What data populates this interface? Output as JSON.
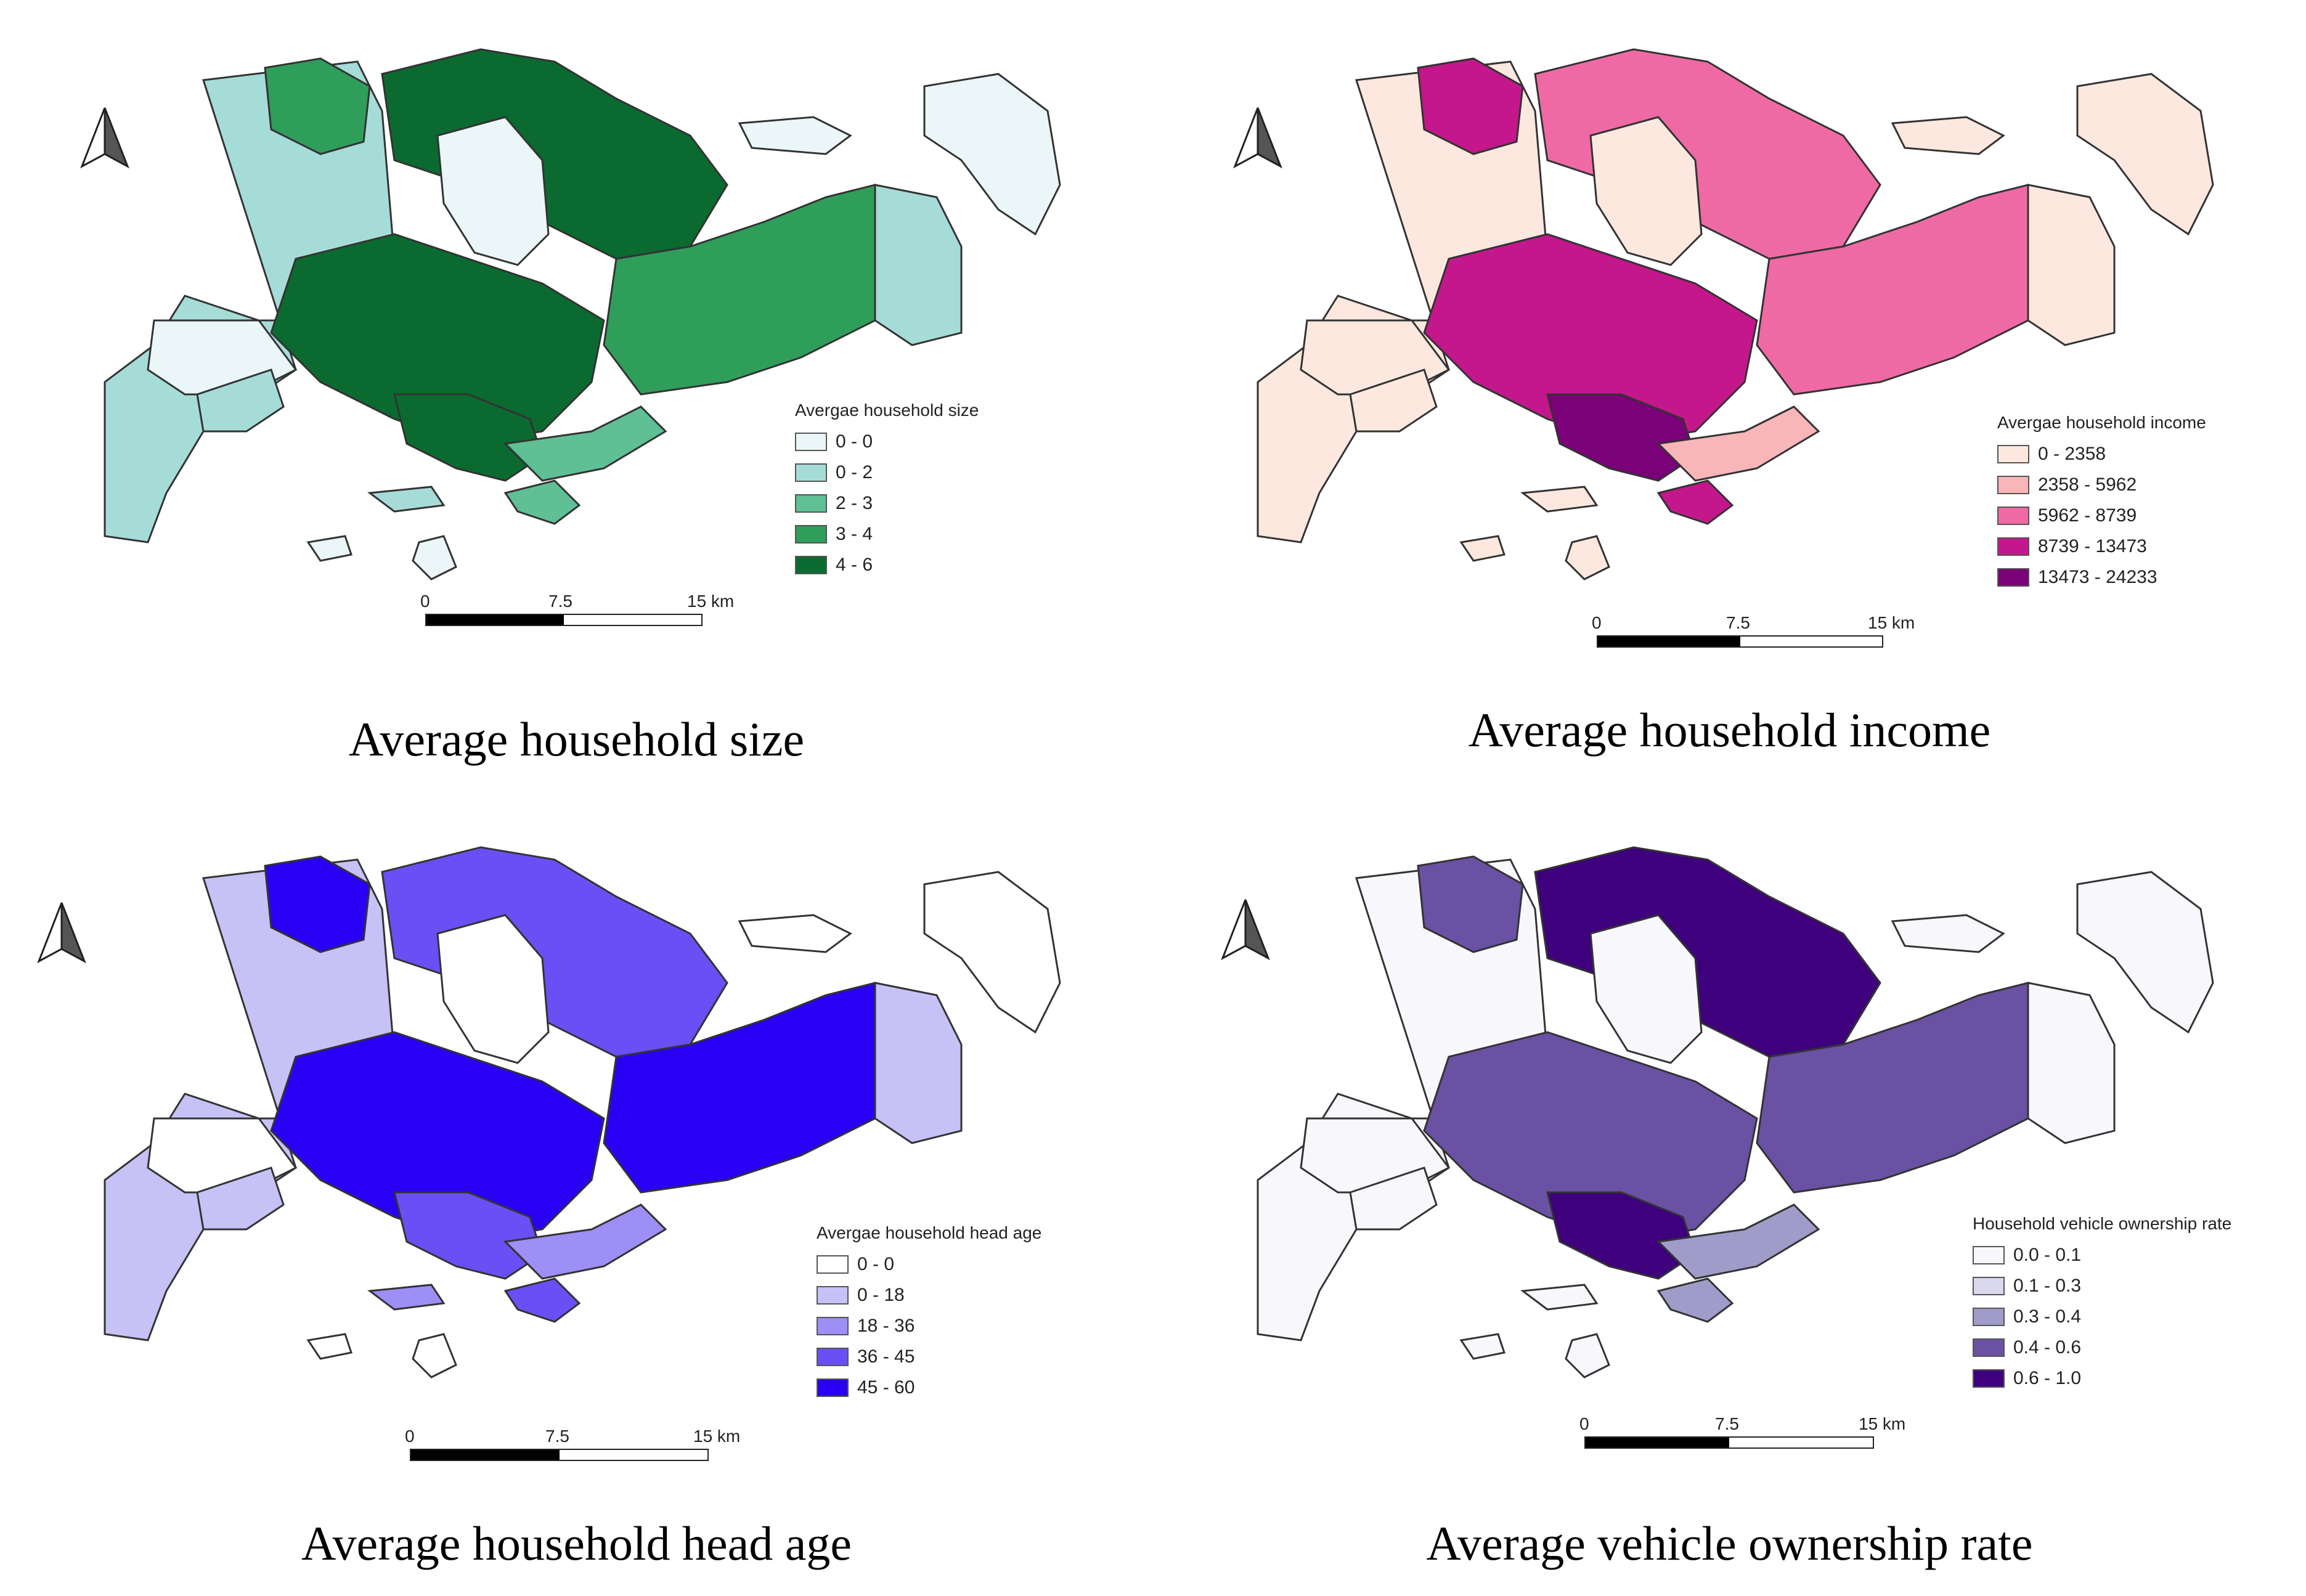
{
  "panels": [
    {
      "caption": "Average household size",
      "legend_title": "Avergae household size",
      "classes": [
        {
          "label": "0 - 0",
          "color": "#eaf6f8"
        },
        {
          "label": "0 - 2",
          "color": "#a6dcd8"
        },
        {
          "label": "2 - 3",
          "color": "#5fbf95"
        },
        {
          "label": "3 - 4",
          "color": "#2f9e5a"
        },
        {
          "label": "4 - 6",
          "color": "#0a6a30"
        }
      ],
      "scale": {
        "zero": "0",
        "mid": "7.5",
        "end": "15 km"
      }
    },
    {
      "caption": "Average household income",
      "legend_title": "Avergae household income",
      "classes": [
        {
          "label": "0 - 2358",
          "color": "#fde8df"
        },
        {
          "label": "2358 - 5962",
          "color": "#f8b6b9"
        },
        {
          "label": "5962 - 8739",
          "color": "#ef6aa4"
        },
        {
          "label": "8739 - 13473",
          "color": "#c4178c"
        },
        {
          "label": "13473 - 24233",
          "color": "#7a0177"
        }
      ],
      "scale": {
        "zero": "0",
        "mid": "7.5",
        "end": "15 km"
      }
    },
    {
      "caption": "Average household head age",
      "legend_title": "Avergae household head age",
      "classes": [
        {
          "label": "0 - 0",
          "color": "#ffffff"
        },
        {
          "label": "0 - 18",
          "color": "#c6c2f6"
        },
        {
          "label": "18 - 36",
          "color": "#9d8ff5"
        },
        {
          "label": "36 - 45",
          "color": "#6a4ff5"
        },
        {
          "label": "45 - 60",
          "color": "#2a00f5"
        }
      ],
      "scale": {
        "zero": "0",
        "mid": "7.5",
        "end": "15 km"
      }
    },
    {
      "caption": "Average vehicle ownership rate",
      "legend_title": "Household vehicle ownership rate",
      "classes": [
        {
          "label": "0.0 - 0.1",
          "color": "#f8f8fc"
        },
        {
          "label": "0.1 - 0.3",
          "color": "#d9d8ec"
        },
        {
          "label": "0.3 - 0.4",
          "color": "#a09cc9"
        },
        {
          "label": "0.4 - 0.6",
          "color": "#6a51a3"
        },
        {
          "label": "0.6 - 1.0",
          "color": "#3f007d"
        }
      ],
      "scale": {
        "zero": "0",
        "mid": "7.5",
        "end": "15 km"
      }
    }
  ]
}
